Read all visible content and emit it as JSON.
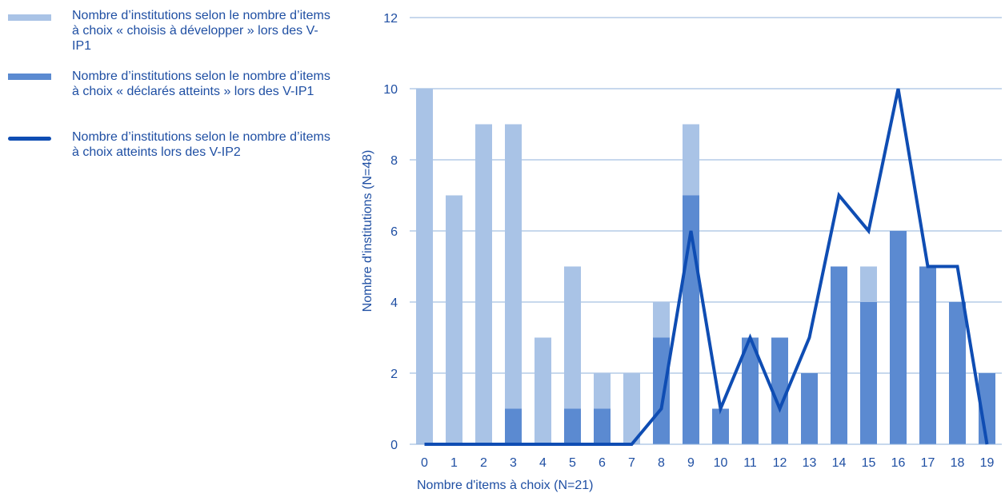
{
  "legend": {
    "items": [
      {
        "label": "Nombre d’institutions selon le nombre d’items à choix « choisis à développer » lors des V-IP1",
        "color": "#a9c3e6",
        "kind": "bar"
      },
      {
        "label": "Nombre d’institutions selon le nombre d’items à choix « déclarés atteints » lors des V-IP1",
        "color": "#5b8ad1",
        "kind": "bar"
      },
      {
        "label": "Nombre d’institutions selon le nombre d’items à choix atteints lors des V-IP2",
        "color": "#0f4db3",
        "kind": "line"
      }
    ]
  },
  "chart_data": {
    "type": "bar",
    "title": "",
    "xlabel": "Nombre d'items à choix (N=21)",
    "ylabel": "Nombre d'institutions (N=48)",
    "categories": [
      "0",
      "1",
      "2",
      "3",
      "4",
      "5",
      "6",
      "7",
      "8",
      "9",
      "10",
      "11",
      "12",
      "13",
      "14",
      "15",
      "16",
      "17",
      "18",
      "19"
    ],
    "ylim": [
      0,
      12
    ],
    "yticks": [
      0,
      2,
      4,
      6,
      8,
      10,
      12
    ],
    "grid": true,
    "legend_position": "left",
    "series": [
      {
        "name": "Nombre d’institutions selon le nombre d’items à choix « choisis à développer » lors des V-IP1",
        "type": "bar",
        "color": "#a9c3e6",
        "values": [
          10,
          7,
          9,
          9,
          3,
          5,
          2,
          2,
          4,
          9,
          0,
          0,
          0,
          0,
          0,
          5,
          0,
          0,
          0,
          0
        ]
      },
      {
        "name": "Nombre d’institutions selon le nombre d’items à choix « déclarés atteints » lors des V-IP1",
        "type": "bar",
        "color": "#5b8ad1",
        "values": [
          0,
          0,
          0,
          1,
          0,
          1,
          1,
          0,
          3,
          7,
          1,
          3,
          3,
          2,
          5,
          4,
          6,
          5,
          4,
          2
        ]
      },
      {
        "name": "Nombre d’institutions selon le nombre d’items à choix atteints lors des V-IP2",
        "type": "line",
        "color": "#0f4db3",
        "values": [
          0,
          0,
          0,
          0,
          0,
          0,
          0,
          0,
          1,
          6,
          1,
          3,
          1,
          3,
          7,
          6,
          10,
          5,
          5,
          0
        ]
      }
    ],
    "colors": {
      "grid": "#8fb0db",
      "text": "#1f4fa3"
    }
  }
}
